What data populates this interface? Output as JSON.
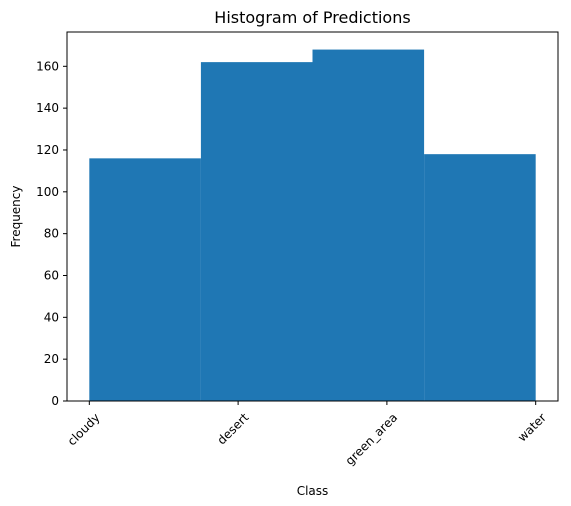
{
  "chart_data": {
    "type": "bar",
    "title": "Histogram of Predictions",
    "xlabel": "Class",
    "ylabel": "Frequency",
    "categories": [
      "cloudy",
      "desert",
      "green_area",
      "water"
    ],
    "bins": [
      {
        "from": 0.0,
        "to": 0.75,
        "value": 116
      },
      {
        "from": 0.75,
        "to": 1.5,
        "value": 162
      },
      {
        "from": 1.5,
        "to": 2.25,
        "value": 168
      },
      {
        "from": 2.25,
        "to": 3.0,
        "value": 118
      }
    ],
    "ylim": [
      0,
      176.4
    ],
    "yticks": [
      0,
      20,
      40,
      60,
      80,
      100,
      120,
      140,
      160
    ],
    "bar_color": "#1f77b4",
    "grid": false,
    "legend": "none"
  }
}
